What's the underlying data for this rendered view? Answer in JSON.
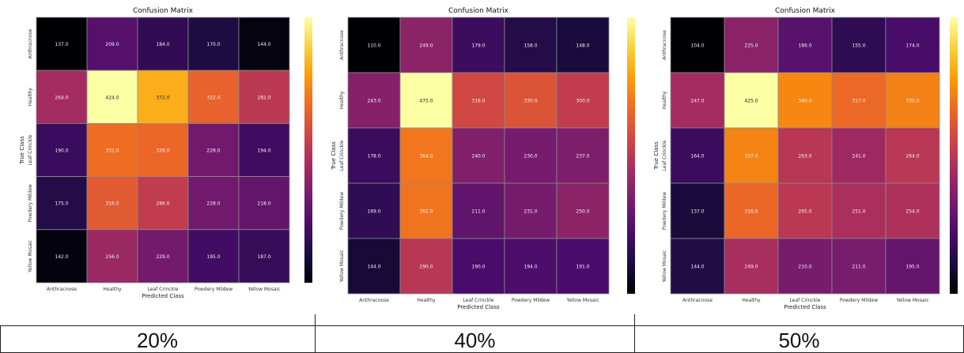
{
  "colorscale": [
    "#000004",
    "#1b0c41",
    "#4a0c6b",
    "#781c6d",
    "#a52c60",
    "#cf4446",
    "#ed6925",
    "#fb9b06",
    "#f7d13d",
    "#fcffa4"
  ],
  "chart_data": [
    {
      "type": "heatmap",
      "title": "Confusion Matrix",
      "xlabel": "Predicted Class",
      "ylabel": "True Class",
      "x_categories": [
        "Anthracnose",
        "Healthy",
        "Leaf Crinckle",
        "Powdery Mildew",
        "Yellow Mosaic"
      ],
      "y_categories": [
        "Anthracnose",
        "Healthy",
        "Leaf Crinckle",
        "Powdery Mildew",
        "Yellow Mosaic"
      ],
      "values": [
        [
          137.0,
          209.0,
          184.0,
          170.0,
          144.0
        ],
        [
          264.0,
          424.0,
          372.0,
          322.0,
          282.0
        ],
        [
          190.0,
          331.0,
          326.0,
          228.0,
          194.0
        ],
        [
          175.0,
          316.0,
          286.0,
          228.0,
          218.0
        ],
        [
          142.0,
          256.0,
          229.0,
          195.0,
          187.0
        ]
      ],
      "colorbar": true
    },
    {
      "type": "heatmap",
      "title": "Confusion Matrix",
      "xlabel": "Predicted Class",
      "ylabel": "True Class",
      "x_categories": [
        "Anthracnose",
        "Healthy",
        "Leaf Crinckle",
        "Powdery Mildew",
        "Yellow Mosaic"
      ],
      "y_categories": [
        "Anthracnose",
        "Healthy",
        "Leaf Crinckle",
        "Powdery Mildew",
        "Yellow Mosaic"
      ],
      "values": [
        [
          110.0,
          249.0,
          179.0,
          158.0,
          148.0
        ],
        [
          243.0,
          475.0,
          316.0,
          330.0,
          300.0
        ],
        [
          178.0,
          364.0,
          240.0,
          230.0,
          237.0
        ],
        [
          169.0,
          362.0,
          211.0,
          231.0,
          250.0
        ],
        [
          144.0,
          290.0,
          190.0,
          194.0,
          191.0
        ]
      ],
      "colorbar": true
    },
    {
      "type": "heatmap",
      "title": "Confusion Matrix",
      "xlabel": "Predicted Class",
      "ylabel": "True Class",
      "x_categories": [
        "Anthracnose",
        "Healthy",
        "Leaf Crinckle",
        "Powdery Mildew",
        "Yellow Mosaic"
      ],
      "y_categories": [
        "Anthracnose",
        "Healthy",
        "Leaf Crinckle",
        "Powdery Mildew",
        "Yellow Mosaic"
      ],
      "values": [
        [
          104.0,
          225.0,
          186.0,
          155.0,
          174.0
        ],
        [
          247.0,
          425.0,
          340.0,
          317.0,
          335.0
        ],
        [
          164.0,
          337.0,
          263.0,
          241.0,
          264.0
        ],
        [
          137.0,
          316.0,
          265.0,
          251.0,
          254.0
        ],
        [
          144.0,
          249.0,
          210.0,
          211.0,
          195.0
        ]
      ],
      "colorbar": true
    }
  ],
  "captions": [
    "20%",
    "40%",
    "50%"
  ]
}
